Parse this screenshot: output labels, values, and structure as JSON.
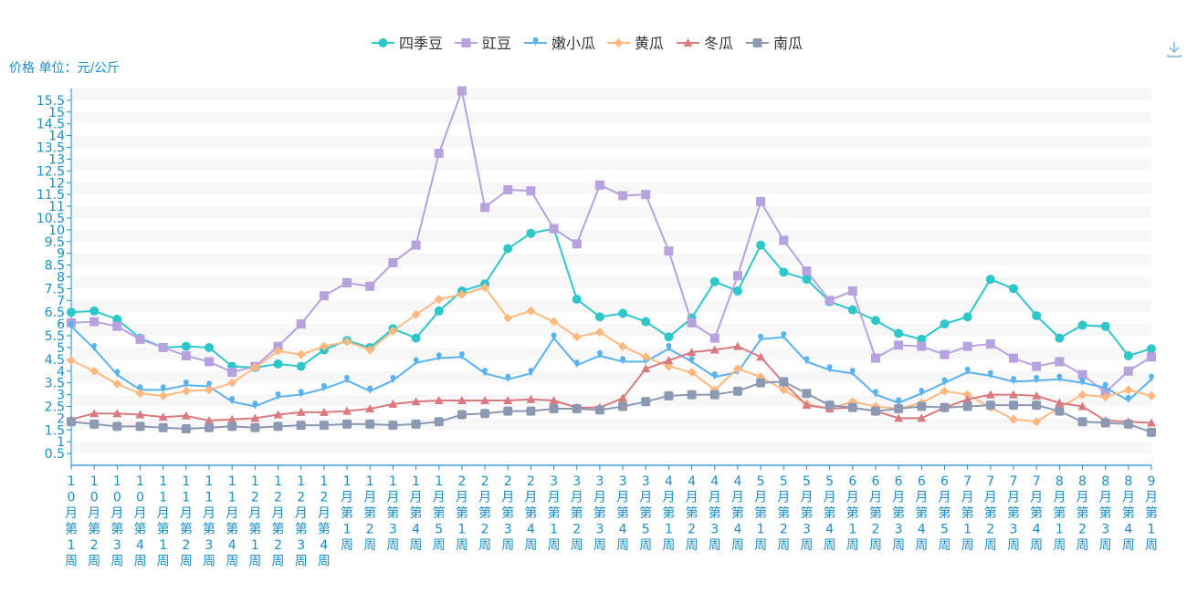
{
  "chart_data": {
    "type": "line",
    "ylabel": "价格 单位：元/公斤",
    "ylim": [
      0,
      16
    ],
    "y_ticks": [
      "0.5",
      "1",
      "1.5",
      "2",
      "2.5",
      "3",
      "3.5",
      "4",
      "4.5",
      "5",
      "5.5",
      "6",
      "6.5",
      "7",
      "7.5",
      "8",
      "8.5",
      "9",
      "9.5",
      "10",
      "10.5",
      "11",
      "11.5",
      "12",
      "12.5",
      "13",
      "13.5",
      "14",
      "14.5",
      "15",
      "15.5"
    ],
    "grid": true,
    "legend_position": "top-center",
    "categories": [
      "10月第1周",
      "10月第2周",
      "10月第3周",
      "10月第4周",
      "11月第1周",
      "11月第2周",
      "11月第3周",
      "11月第4周",
      "12月第1周",
      "12月第2周",
      "12月第3周",
      "12月第4周",
      "1月第1周",
      "1月第2周",
      "1月第3周",
      "1月第4周",
      "1月第5周",
      "2月第1周",
      "2月第2周",
      "2月第3周",
      "2月第4周",
      "3月第1周",
      "3月第2周",
      "3月第3周",
      "3月第4周",
      "3月第5周",
      "4月第1周",
      "4月第2周",
      "4月第3周",
      "4月第4周",
      "5月第1周",
      "5月第2周",
      "5月第3周",
      "5月第4周",
      "6月第1周",
      "6月第2周",
      "6月第3周",
      "6月第4周",
      "6月第5周",
      "7月第1周",
      "7月第2周",
      "7月第3周",
      "7月第4周",
      "8月第1周",
      "8月第2周",
      "8月第3周",
      "8月第4周",
      "9月第1周"
    ],
    "series": [
      {
        "name": "四季豆",
        "color": "#2ec7c9",
        "symbol": "circle",
        "values": [
          6.5,
          6.55,
          6.2,
          5.4,
          5.0,
          5.05,
          5.0,
          4.2,
          4.15,
          4.3,
          4.2,
          4.9,
          5.3,
          5.0,
          5.8,
          5.4,
          6.55,
          7.4,
          7.7,
          9.2,
          9.85,
          10.05,
          7.05,
          6.3,
          6.45,
          6.1,
          5.45,
          6.25,
          7.8,
          7.4,
          9.35,
          8.2,
          7.9,
          6.95,
          6.6,
          6.15,
          5.6,
          5.35,
          6.0,
          6.3,
          7.9,
          7.5,
          6.35,
          5.4,
          5.95,
          5.9,
          4.65,
          4.95
        ]
      },
      {
        "name": "豇豆",
        "color": "#b6a2de",
        "symbol": "rect",
        "values": [
          6.05,
          6.1,
          5.9,
          5.35,
          5.0,
          4.65,
          4.4,
          3.95,
          4.2,
          5.05,
          6.0,
          7.2,
          7.75,
          7.6,
          8.6,
          9.35,
          13.25,
          15.9,
          10.95,
          11.7,
          11.65,
          10.05,
          9.4,
          11.9,
          11.45,
          11.5,
          9.1,
          6.05,
          5.4,
          8.05,
          11.2,
          9.55,
          8.25,
          7.0,
          7.4,
          4.55,
          5.1,
          5.05,
          4.7,
          5.05,
          5.15,
          4.55,
          4.2,
          4.4,
          3.85,
          3.1,
          4.0,
          4.6
        ]
      },
      {
        "name": "嫩小瓜",
        "color": "#5ab1ef",
        "symbol": "pin",
        "values": [
          5.9,
          4.95,
          3.85,
          3.2,
          3.2,
          3.4,
          3.35,
          2.7,
          2.5,
          2.9,
          3.0,
          3.25,
          3.6,
          3.15,
          3.6,
          4.35,
          4.55,
          4.6,
          3.9,
          3.65,
          3.9,
          5.4,
          4.25,
          4.65,
          4.4,
          4.4,
          4.95,
          4.4,
          3.75,
          3.95,
          5.35,
          5.45,
          4.4,
          4.05,
          3.9,
          3.0,
          2.65,
          3.05,
          3.5,
          3.95,
          3.8,
          3.55,
          3.6,
          3.65,
          3.5,
          3.3,
          2.75,
          3.65
        ]
      },
      {
        "name": "黄瓜",
        "color": "#ffb980",
        "symbol": "diamond",
        "values": [
          4.45,
          4.0,
          3.45,
          3.05,
          2.95,
          3.15,
          3.2,
          3.5,
          4.15,
          4.85,
          4.7,
          5.05,
          5.25,
          4.9,
          5.7,
          6.4,
          7.05,
          7.25,
          7.55,
          6.25,
          6.55,
          6.1,
          5.45,
          5.65,
          5.05,
          4.6,
          4.2,
          3.95,
          3.2,
          4.1,
          3.75,
          3.2,
          2.6,
          2.4,
          2.7,
          2.5,
          2.4,
          2.65,
          3.15,
          3.0,
          2.45,
          1.95,
          1.85,
          2.45,
          3.0,
          2.9,
          3.2,
          2.95
        ]
      },
      {
        "name": "冬瓜",
        "color": "#d87a80",
        "symbol": "triangle",
        "values": [
          1.95,
          2.2,
          2.2,
          2.15,
          2.05,
          2.1,
          1.9,
          1.95,
          2.0,
          2.15,
          2.25,
          2.25,
          2.3,
          2.4,
          2.6,
          2.7,
          2.75,
          2.75,
          2.75,
          2.75,
          2.8,
          2.75,
          2.45,
          2.45,
          2.85,
          4.1,
          4.45,
          4.8,
          4.9,
          5.05,
          4.6,
          3.5,
          2.55,
          2.4,
          2.45,
          2.3,
          2.0,
          2.0,
          2.45,
          2.8,
          3.0,
          3.0,
          2.95,
          2.65,
          2.5,
          1.9,
          1.85,
          1.8
        ]
      },
      {
        "name": "南瓜",
        "color": "#8d98b3",
        "symbol": "roundRect",
        "values": [
          1.85,
          1.75,
          1.65,
          1.65,
          1.6,
          1.55,
          1.6,
          1.65,
          1.6,
          1.65,
          1.7,
          1.7,
          1.75,
          1.75,
          1.7,
          1.75,
          1.85,
          2.15,
          2.2,
          2.3,
          2.3,
          2.4,
          2.4,
          2.35,
          2.5,
          2.7,
          2.95,
          3.0,
          3.0,
          3.15,
          3.5,
          3.55,
          3.05,
          2.55,
          2.45,
          2.3,
          2.4,
          2.5,
          2.45,
          2.5,
          2.55,
          2.55,
          2.55,
          2.3,
          1.85,
          1.8,
          1.75,
          1.4
        ]
      }
    ]
  },
  "icons": {
    "download": "download-icon"
  }
}
